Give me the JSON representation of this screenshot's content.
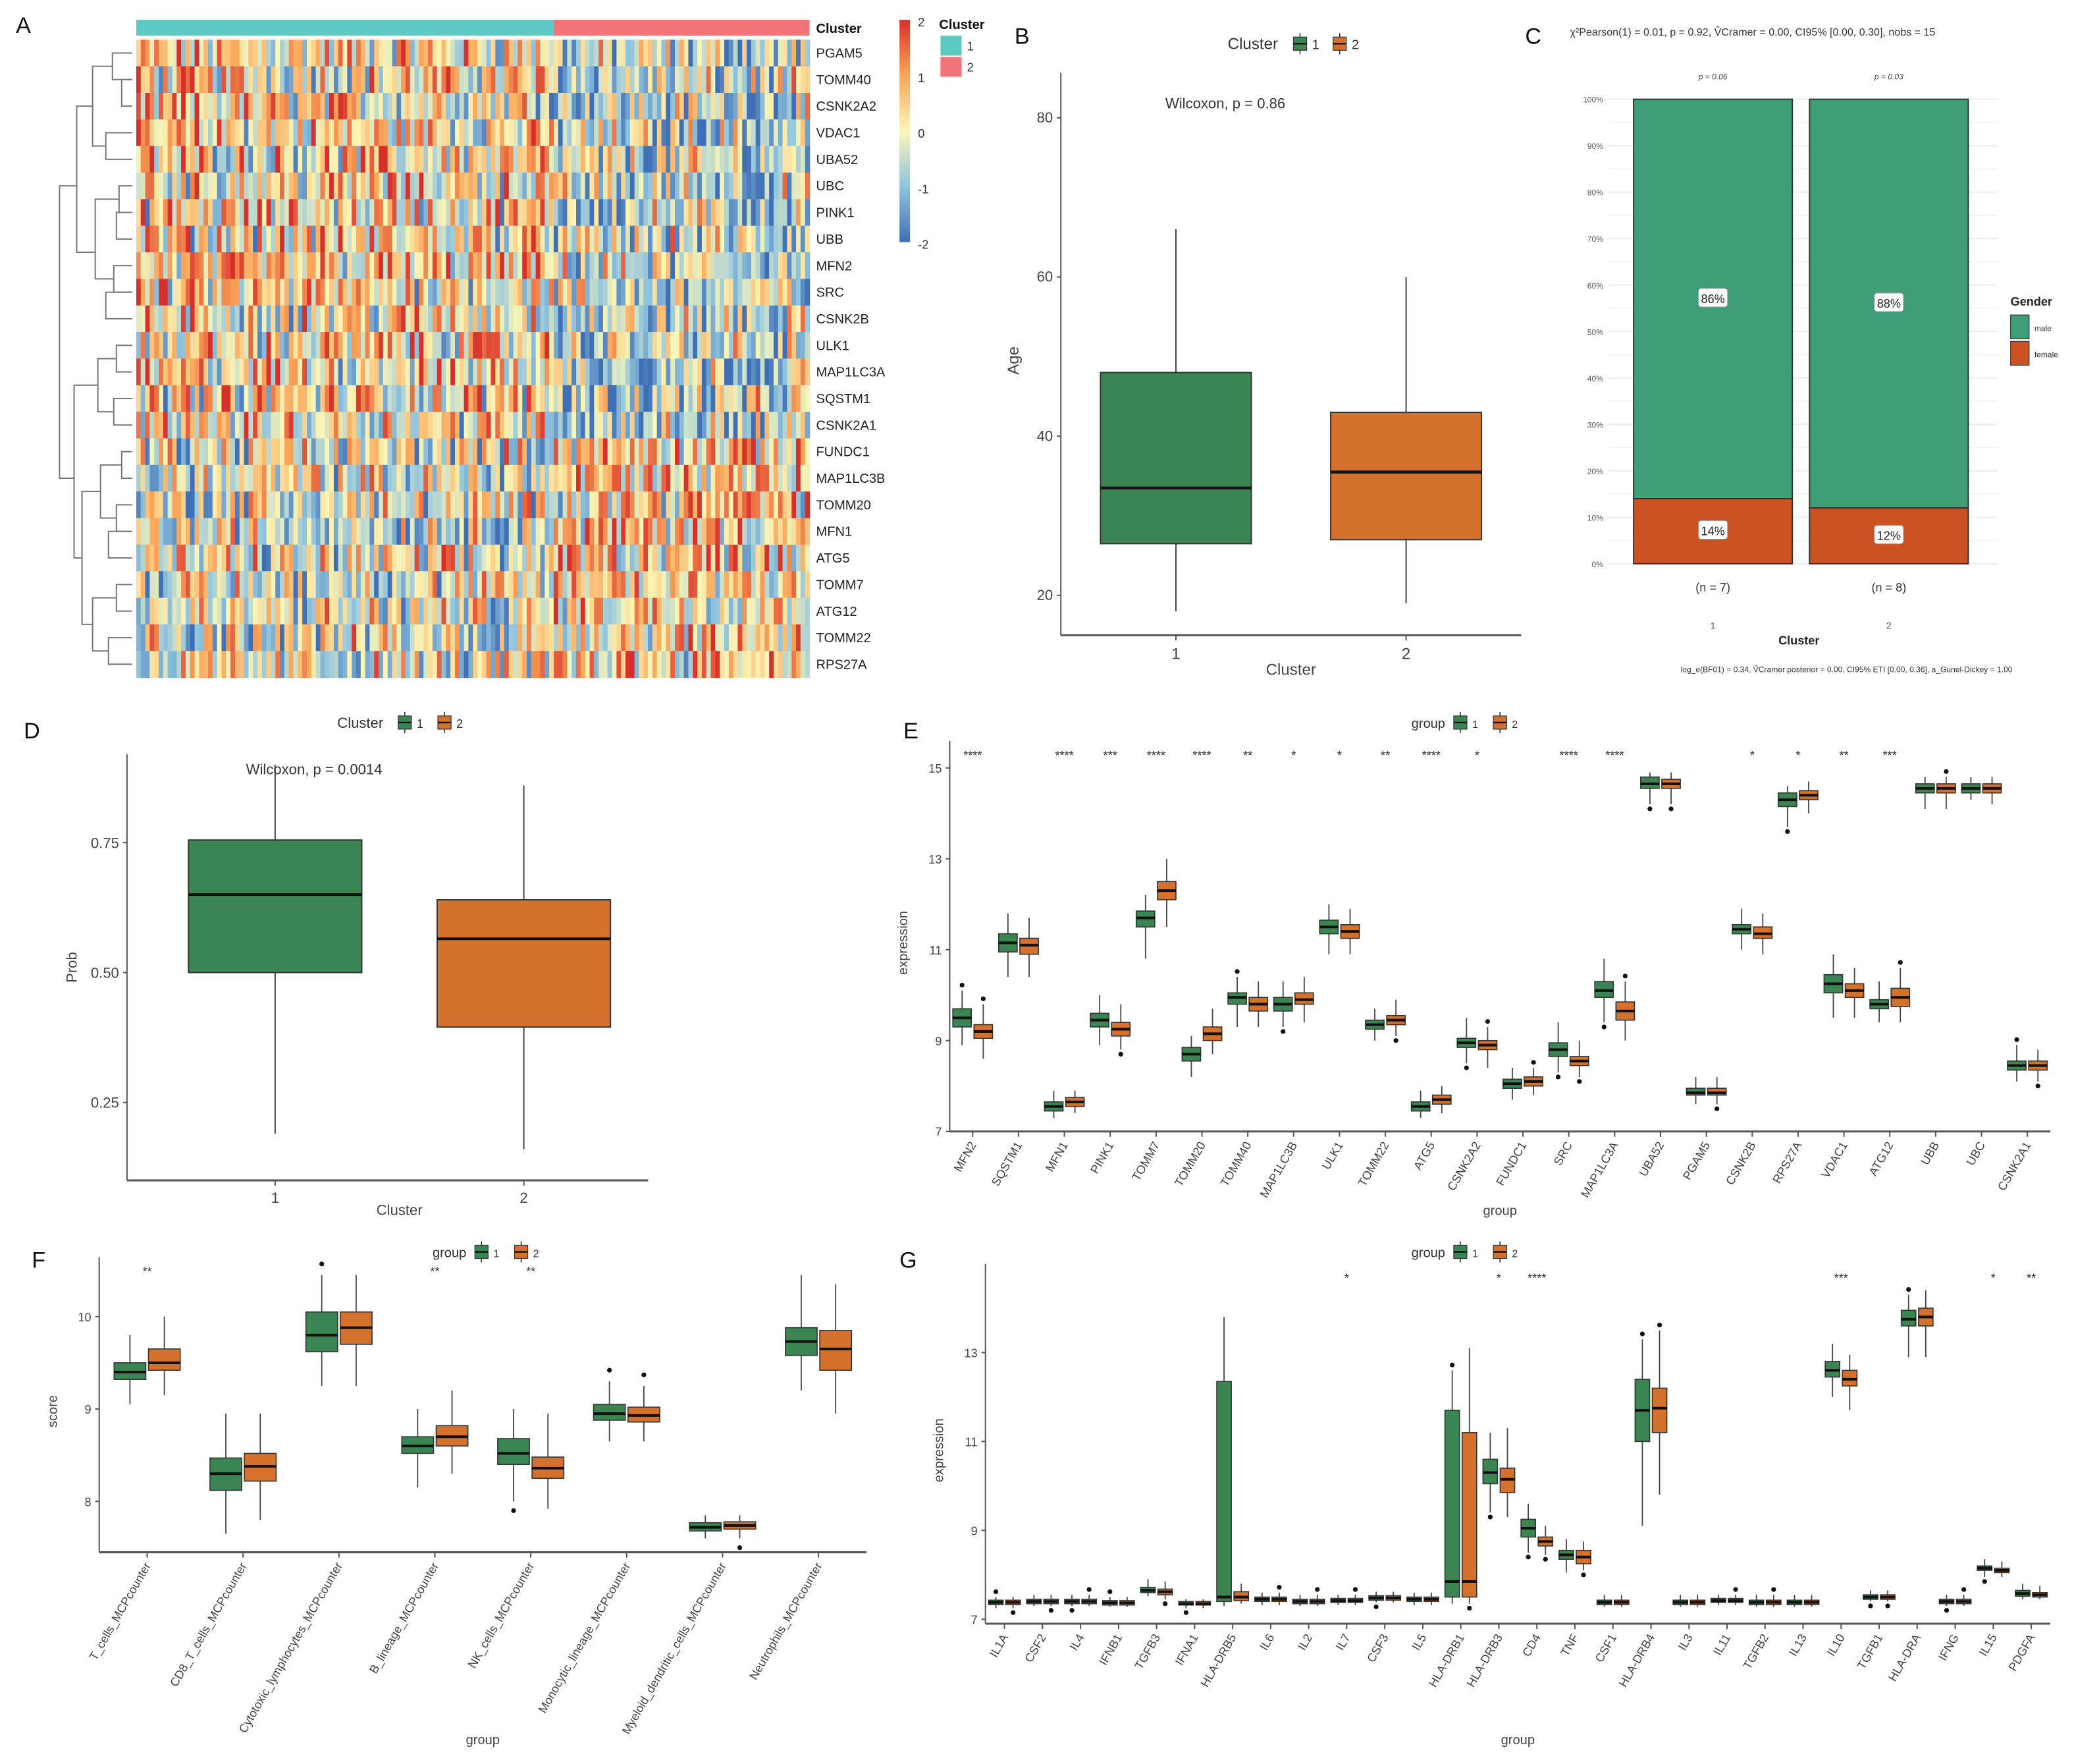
{
  "figure": {
    "panels": [
      "A",
      "B",
      "C",
      "D",
      "E",
      "F",
      "G"
    ]
  },
  "colors": {
    "cluster1_fill": "#3b8552",
    "cluster2_fill": "#d4712d",
    "annot_cluster1": "#5ec8c3",
    "annot_cluster2": "#f27479",
    "heat_high": "#d7302a",
    "heat_mid": "#fcf6b6",
    "heat_low": "#3f6fb5",
    "male": "#3f9e76",
    "female": "#cc5223"
  },
  "chart_data": [
    {
      "panel": "A",
      "type": "heatmap",
      "title": "",
      "annotation_label": "Cluster",
      "annotation_groups": [
        {
          "label": "1",
          "fraction_of_columns": 0.62
        },
        {
          "label": "2",
          "fraction_of_columns": 0.38
        }
      ],
      "rows": [
        "PGAM5",
        "TOMM40",
        "CSNK2A2",
        "VDAC1",
        "UBA52",
        "UBC",
        "PINK1",
        "UBB",
        "MFN2",
        "SRC",
        "CSNK2B",
        "ULK1",
        "MAP1LC3A",
        "SQSTM1",
        "CSNK2A1",
        "FUNDC1",
        "MAP1LC3B",
        "TOMM20",
        "MFN1",
        "ATG5",
        "TOMM7",
        "ATG12",
        "TOMM22",
        "RPS27A"
      ],
      "n_columns": 150,
      "color_scale": {
        "min": -2,
        "max": 2,
        "ticks": [
          2,
          1,
          0,
          -1,
          -2
        ]
      },
      "legend": {
        "title": "Cluster",
        "entries": [
          "1",
          "2"
        ]
      },
      "row_dendrogram": true,
      "cluster2_pattern": "rows TOMM20 to RPS27A tend higher (red) in cluster 2; upper rows tend lower (blue) in cluster 2"
    },
    {
      "panel": "B",
      "type": "box",
      "xlabel": "Cluster",
      "ylabel": "Age",
      "categories": [
        "1",
        "2"
      ],
      "ylim": [
        15,
        84
      ],
      "yticks": [
        20,
        40,
        60,
        80
      ],
      "legend": {
        "title": "Cluster",
        "entries": [
          "1",
          "2"
        ],
        "position": "top"
      },
      "annotation": "Wilcoxon, p = 0.86",
      "series": [
        {
          "name": "1",
          "min": 18,
          "q1": 26.5,
          "median": 33.5,
          "q3": 48,
          "max": 66
        },
        {
          "name": "2",
          "min": 19,
          "q1": 27,
          "median": 35.5,
          "q3": 43,
          "max": 60
        }
      ]
    },
    {
      "panel": "C",
      "type": "bar",
      "stacked": true,
      "title": "χ²Pearson(1) = 0.01, p = 0.92, V̂Cramer = 0.00, CI95% [0.00, 0.30], nobs = 15",
      "subtitle_bottom": "log_e(BF01) = 0.34, V̂Cramer posterior = 0.00, CI95% ETI [0.00, 0.36], a_Gunel-Dickey = 1.00",
      "xlabel": "Cluster",
      "ylabel": "",
      "categories": [
        "1",
        "2"
      ],
      "category_n": [
        "(n = 7)",
        "(n = 8)"
      ],
      "top_pvalues": [
        "p = 0.06",
        "p = 0.03"
      ],
      "yticks": [
        "0%",
        "10%",
        "20%",
        "30%",
        "40%",
        "50%",
        "60%",
        "70%",
        "80%",
        "90%",
        "100%"
      ],
      "ylim": [
        0,
        100
      ],
      "legend": {
        "title": "Gender",
        "entries": [
          "male",
          "female"
        ],
        "position": "right"
      },
      "series": [
        {
          "name": "female",
          "values": [
            14,
            12
          ],
          "labels": [
            "14%",
            "12%"
          ]
        },
        {
          "name": "male",
          "values": [
            86,
            88
          ],
          "labels": [
            "86%",
            "88%"
          ]
        }
      ]
    },
    {
      "panel": "D",
      "type": "box",
      "xlabel": "Cluster",
      "ylabel": "Prob",
      "categories": [
        "1",
        "2"
      ],
      "ylim": [
        0.1,
        0.92
      ],
      "yticks": [
        0.25,
        0.5,
        0.75
      ],
      "ytick_labels": [
        "0.25",
        "0.50",
        "0.75"
      ],
      "legend": {
        "title": "Cluster",
        "entries": [
          "1",
          "2"
        ],
        "position": "top"
      },
      "annotation": "Wilcoxon, p = 0.0014",
      "series": [
        {
          "name": "1",
          "min": 0.19,
          "q1": 0.5,
          "median": 0.65,
          "q3": 0.755,
          "max": 0.9
        },
        {
          "name": "2",
          "min": 0.16,
          "q1": 0.395,
          "median": 0.565,
          "q3": 0.64,
          "max": 0.86
        }
      ]
    },
    {
      "panel": "E",
      "type": "box",
      "xlabel": "group",
      "ylabel": "expression",
      "ylim": [
        7,
        15.3
      ],
      "yticks": [
        7,
        9,
        11,
        13,
        15
      ],
      "legend": {
        "title": "group",
        "entries": [
          "1",
          "2"
        ],
        "position": "top"
      },
      "categories": [
        "MFN2",
        "SQSTM1",
        "MFN1",
        "PINK1",
        "TOMM7",
        "TOMM20",
        "TOMM40",
        "MAP1LC3B",
        "ULK1",
        "TOMM22",
        "ATG5",
        "CSNK2A2",
        "FUNDC1",
        "SRC",
        "MAP1LC3A",
        "UBA52",
        "PGAM5",
        "CSNK2B",
        "RPS27A",
        "VDAC1",
        "ATG12",
        "UBB",
        "UBC",
        "CSNK2A1"
      ],
      "significance": [
        "****",
        "",
        "****",
        "***",
        "****",
        "****",
        "**",
        "*",
        "*",
        "**",
        "****",
        "*",
        "",
        "****",
        "****",
        "",
        "",
        "*",
        "*",
        "**",
        "***",
        "",
        "",
        ""
      ],
      "series": [
        {
          "name": "1",
          "medians": [
            9.5,
            11.15,
            7.55,
            9.45,
            11.7,
            8.7,
            9.95,
            9.8,
            11.5,
            9.35,
            7.55,
            8.95,
            8.05,
            8.8,
            10.1,
            14.65,
            7.85,
            11.45,
            14.3,
            10.25,
            9.8,
            14.55,
            14.55,
            8.45
          ],
          "q1": [
            9.3,
            10.95,
            7.45,
            9.3,
            11.5,
            8.55,
            9.8,
            9.65,
            11.35,
            9.25,
            7.45,
            8.85,
            7.95,
            8.65,
            9.95,
            14.55,
            7.8,
            11.35,
            14.15,
            10.05,
            9.7,
            14.45,
            14.45,
            8.35
          ],
          "q3": [
            9.7,
            11.35,
            7.65,
            9.6,
            11.85,
            8.85,
            10.05,
            9.95,
            11.65,
            9.45,
            7.65,
            9.05,
            8.15,
            8.95,
            10.3,
            14.8,
            7.95,
            11.55,
            14.45,
            10.45,
            9.9,
            14.65,
            14.65,
            8.55
          ],
          "min": [
            8.9,
            10.4,
            7.3,
            8.9,
            10.8,
            8.2,
            9.3,
            9.3,
            10.9,
            9.0,
            7.3,
            8.5,
            7.7,
            8.3,
            9.4,
            14.2,
            7.6,
            11.0,
            13.7,
            9.5,
            9.4,
            14.1,
            14.3,
            8.1
          ],
          "max": [
            10.1,
            11.8,
            7.9,
            10.0,
            12.2,
            9.1,
            10.4,
            10.3,
            12.0,
            9.7,
            7.9,
            9.5,
            8.4,
            9.4,
            10.8,
            14.9,
            8.2,
            11.9,
            14.6,
            10.9,
            10.3,
            14.8,
            14.8,
            8.9
          ]
        },
        {
          "name": "2",
          "medians": [
            9.2,
            11.1,
            7.65,
            9.25,
            12.3,
            9.15,
            9.8,
            9.9,
            11.4,
            9.45,
            7.7,
            8.9,
            8.1,
            8.55,
            9.65,
            14.65,
            7.85,
            11.35,
            14.4,
            10.1,
            9.95,
            14.55,
            14.55,
            8.45
          ],
          "q1": [
            9.05,
            10.9,
            7.55,
            9.1,
            12.1,
            9.0,
            9.65,
            9.8,
            11.25,
            9.35,
            7.6,
            8.8,
            8.0,
            8.45,
            9.45,
            14.55,
            7.8,
            11.25,
            14.3,
            9.95,
            9.75,
            14.45,
            14.45,
            8.35
          ],
          "q3": [
            9.35,
            11.25,
            7.75,
            9.4,
            12.5,
            9.3,
            9.95,
            10.05,
            11.55,
            9.55,
            7.8,
            9.0,
            8.2,
            8.65,
            9.85,
            14.75,
            7.95,
            11.5,
            14.5,
            10.25,
            10.15,
            14.65,
            14.65,
            8.55
          ],
          "min": [
            8.6,
            10.4,
            7.4,
            8.8,
            11.5,
            8.7,
            9.3,
            9.4,
            10.9,
            9.1,
            7.4,
            8.4,
            7.8,
            8.2,
            9.0,
            14.2,
            7.6,
            10.9,
            14.0,
            9.5,
            9.4,
            14.1,
            14.2,
            8.1
          ],
          "max": [
            9.8,
            11.7,
            7.9,
            9.8,
            13.0,
            9.7,
            10.3,
            10.4,
            11.9,
            9.9,
            8.0,
            9.3,
            8.4,
            9.0,
            10.3,
            14.9,
            8.2,
            11.8,
            14.7,
            10.6,
            10.6,
            14.8,
            14.8,
            8.8
          ]
        }
      ]
    },
    {
      "panel": "F",
      "type": "box",
      "xlabel": "group",
      "ylabel": "score",
      "ylim": [
        7.45,
        10.5
      ],
      "yticks": [
        8,
        9,
        10
      ],
      "legend": {
        "title": "group",
        "entries": [
          "1",
          "2"
        ],
        "position": "top"
      },
      "categories": [
        "T_cells_MCPcounter",
        "CD8_T_cells_MCPcounter",
        "Cytotoxic_lymphocytes_MCPcounter",
        "B_lineage_MCPcounter",
        "NK_cells_MCPcounter",
        "Monocytic_lineage_MCPcounter",
        "Myeloid_dendritic_cells_MCPcounter",
        "Neutrophils_MCPcounter"
      ],
      "significance": [
        "**",
        "",
        "",
        "**",
        "**",
        "",
        "",
        ""
      ],
      "series": [
        {
          "name": "1",
          "medians": [
            9.4,
            8.3,
            9.8,
            8.6,
            8.52,
            8.95,
            7.72,
            9.73
          ],
          "q1": [
            9.32,
            8.12,
            9.62,
            8.52,
            8.4,
            8.88,
            7.68,
            9.58
          ],
          "q3": [
            9.5,
            8.47,
            10.05,
            8.7,
            8.68,
            9.05,
            7.77,
            9.88
          ],
          "min": [
            9.05,
            7.65,
            9.25,
            8.15,
            8.0,
            8.65,
            7.6,
            9.2
          ],
          "max": [
            9.8,
            8.95,
            10.45,
            9.0,
            9.0,
            9.3,
            7.85,
            10.45
          ]
        },
        {
          "name": "2",
          "medians": [
            9.5,
            8.38,
            9.88,
            8.7,
            8.36,
            8.93,
            7.74,
            9.65
          ],
          "q1": [
            9.42,
            8.22,
            9.7,
            8.6,
            8.25,
            8.86,
            7.7,
            9.42
          ],
          "q3": [
            9.65,
            8.52,
            10.05,
            8.82,
            8.48,
            9.02,
            7.78,
            9.85
          ],
          "min": [
            9.15,
            7.8,
            9.25,
            8.3,
            7.92,
            8.65,
            7.6,
            8.95
          ],
          "max": [
            10.0,
            8.95,
            10.45,
            9.2,
            8.95,
            9.25,
            7.85,
            10.35
          ]
        }
      ]
    },
    {
      "panel": "G",
      "type": "box",
      "xlabel": "group",
      "ylabel": "expression",
      "ylim": [
        6.9,
        14.7
      ],
      "yticks": [
        7,
        9,
        11,
        13
      ],
      "legend": {
        "title": "group",
        "entries": [
          "1",
          "2"
        ],
        "position": "top"
      },
      "categories": [
        "IL1A",
        "CSF2",
        "IL4",
        "IFNB1",
        "TGFB3",
        "IFNA1",
        "HLA-DRB5",
        "IL6",
        "IL2",
        "IL7",
        "CSF3",
        "IL5",
        "HLA-DRB1",
        "HLA-DRB3",
        "CD4",
        "TNF",
        "CSF1",
        "HLA-DRB4",
        "IL3",
        "IL11",
        "TGFB2",
        "IL13",
        "IL10",
        "TGFB1",
        "HLA-DRA",
        "IFNG",
        "IL15",
        "PDGFA"
      ],
      "significance": [
        "",
        "",
        "",
        "",
        "",
        "",
        "",
        "",
        "",
        "*",
        "",
        "",
        "",
        "*",
        "****",
        "",
        "",
        "",
        "",
        "",
        "",
        "",
        "***",
        "",
        "",
        "",
        "*",
        "**"
      ],
      "series": [
        {
          "name": "1",
          "medians": [
            7.38,
            7.4,
            7.4,
            7.37,
            7.65,
            7.35,
            7.5,
            7.45,
            7.4,
            7.42,
            7.48,
            7.45,
            7.85,
            10.3,
            9.05,
            8.45,
            7.38,
            11.7,
            7.38,
            7.42,
            7.38,
            7.38,
            12.6,
            7.5,
            13.75,
            7.4,
            8.15,
            7.58
          ],
          "q1": [
            7.33,
            7.35,
            7.35,
            7.32,
            7.6,
            7.32,
            7.4,
            7.4,
            7.35,
            7.38,
            7.43,
            7.4,
            7.5,
            10.05,
            8.85,
            8.35,
            7.33,
            11.0,
            7.33,
            7.38,
            7.33,
            7.33,
            12.45,
            7.45,
            13.6,
            7.35,
            8.1,
            7.52
          ],
          "q3": [
            7.43,
            7.45,
            7.45,
            7.42,
            7.72,
            7.4,
            12.35,
            7.5,
            7.45,
            7.47,
            7.53,
            7.5,
            11.7,
            10.6,
            9.25,
            8.55,
            7.43,
            12.4,
            7.43,
            7.47,
            7.43,
            7.43,
            12.8,
            7.55,
            13.95,
            7.45,
            8.2,
            7.65
          ],
          "min": [
            7.25,
            7.3,
            7.3,
            7.28,
            7.52,
            7.25,
            7.3,
            7.32,
            7.3,
            7.32,
            7.38,
            7.32,
            7.35,
            9.4,
            8.5,
            8.05,
            7.28,
            9.1,
            7.28,
            7.32,
            7.28,
            7.28,
            12.0,
            7.4,
            12.9,
            7.3,
            7.95,
            7.45
          ],
          "max": [
            7.5,
            7.55,
            7.55,
            7.5,
            7.9,
            7.45,
            13.8,
            7.6,
            7.55,
            7.55,
            7.62,
            7.6,
            12.6,
            11.2,
            9.6,
            8.8,
            7.55,
            13.3,
            7.55,
            7.55,
            7.55,
            7.55,
            13.2,
            7.65,
            14.3,
            7.55,
            8.35,
            7.8
          ]
        },
        {
          "name": "2",
          "medians": [
            7.38,
            7.4,
            7.4,
            7.37,
            7.62,
            7.35,
            7.5,
            7.45,
            7.4,
            7.42,
            7.48,
            7.45,
            7.85,
            10.15,
            8.75,
            8.4,
            7.38,
            11.75,
            7.38,
            7.42,
            7.38,
            7.38,
            12.4,
            7.5,
            13.8,
            7.4,
            8.1,
            7.55
          ],
          "q1": [
            7.33,
            7.35,
            7.35,
            7.32,
            7.55,
            7.32,
            7.42,
            7.4,
            7.35,
            7.38,
            7.43,
            7.4,
            7.5,
            9.85,
            8.65,
            8.25,
            7.33,
            11.2,
            7.33,
            7.38,
            7.33,
            7.33,
            12.25,
            7.45,
            13.6,
            7.35,
            8.05,
            7.5
          ],
          "q3": [
            7.43,
            7.45,
            7.45,
            7.42,
            7.68,
            7.4,
            7.62,
            7.5,
            7.45,
            7.47,
            7.53,
            7.5,
            11.2,
            10.4,
            8.85,
            8.55,
            7.43,
            12.2,
            7.43,
            7.47,
            7.43,
            7.43,
            12.6,
            7.55,
            14.0,
            7.45,
            8.15,
            7.6
          ],
          "min": [
            7.25,
            7.3,
            7.3,
            7.28,
            7.45,
            7.25,
            7.35,
            7.32,
            7.3,
            7.32,
            7.38,
            7.32,
            7.35,
            9.3,
            8.45,
            8.1,
            7.28,
            9.8,
            7.28,
            7.32,
            7.28,
            7.28,
            11.7,
            7.4,
            12.9,
            7.3,
            7.95,
            7.45
          ],
          "max": [
            7.5,
            7.55,
            7.55,
            7.5,
            7.85,
            7.45,
            7.8,
            7.6,
            7.55,
            7.55,
            7.62,
            7.6,
            13.1,
            11.3,
            9.1,
            8.75,
            7.55,
            13.5,
            7.55,
            7.55,
            7.55,
            7.55,
            12.95,
            7.65,
            14.4,
            7.55,
            8.3,
            7.75
          ]
        }
      ]
    }
  ]
}
